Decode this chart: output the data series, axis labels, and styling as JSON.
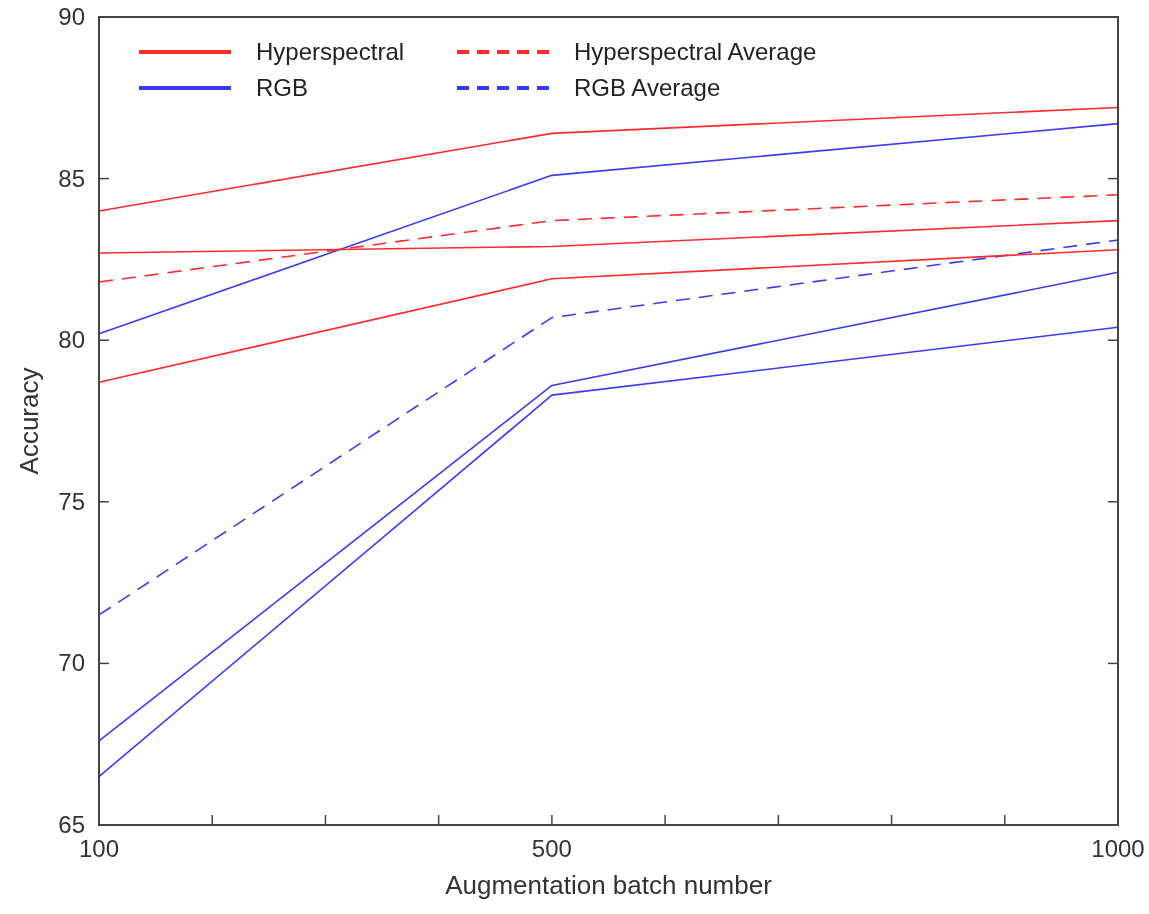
{
  "chart_data": {
    "type": "line",
    "xlabel": "Augmentation batch number",
    "ylabel": "Accuracy",
    "x": [
      100,
      500,
      1000
    ],
    "xlim": [
      100,
      1000
    ],
    "xticks": [
      100,
      {
        "value": 200,
        "label": null
      },
      {
        "value": 300,
        "label": null
      },
      {
        "value": 400,
        "label": null
      },
      500,
      {
        "value": 600,
        "label": null
      },
      {
        "value": 700,
        "label": null
      },
      {
        "value": 800,
        "label": null
      },
      {
        "value": 900,
        "label": null
      },
      1000
    ],
    "ylim": [
      65,
      90
    ],
    "yticks": [
      65,
      70,
      75,
      80,
      85,
      90
    ],
    "legend": "top left",
    "grid": false,
    "series": [
      {
        "name": "Hyperspectral",
        "color": "#ff2a2a",
        "line_style": "solid",
        "values": [
          84.0,
          86.4,
          87.2
        ]
      },
      {
        "name": "RGB",
        "color": "#3a3aff",
        "line_style": "solid",
        "values": [
          80.2,
          85.1,
          86.7
        ]
      },
      {
        "name": "Hyperspectral Average",
        "color": "#ff2a2a",
        "line_style": "dashed",
        "values": [
          81.8,
          83.7,
          84.5
        ]
      },
      {
        "name": "RGB Average",
        "color": "#3a3aff",
        "line_style": "dashed",
        "values": [
          71.5,
          80.7,
          83.1
        ]
      },
      {
        "color": "#ff2a2a",
        "line_style": "solid",
        "values": [
          82.7,
          82.9,
          83.7
        ]
      },
      {
        "color": "#ff2a2a",
        "line_style": "solid",
        "values": [
          78.7,
          81.9,
          82.8
        ]
      },
      {
        "color": "#3a3aff",
        "line_style": "solid",
        "values": [
          67.6,
          78.6,
          82.1
        ]
      },
      {
        "color": "#3a3aff",
        "line_style": "solid",
        "values": [
          66.5,
          78.3,
          80.4
        ]
      }
    ]
  }
}
